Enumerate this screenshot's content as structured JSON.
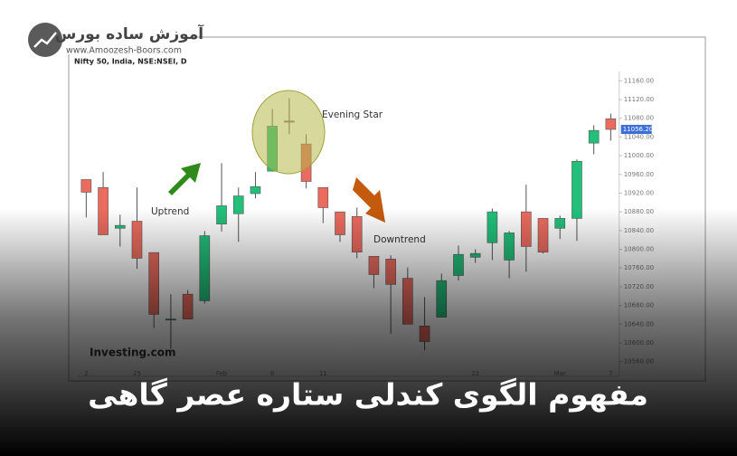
{
  "brand": {
    "name": "آموزش ساده بورس",
    "url": "www.Amoozesh-Boors.com"
  },
  "chart_data": {
    "type": "candlestick",
    "title": "مفهوم الگوی کندلی ستاره عصر گاهی",
    "subtitle": "Nifty 50, India, NSE:NSEI, D",
    "watermark": "Investing.com",
    "annotations": [
      {
        "text": "Uptrend",
        "index": 4
      },
      {
        "text": "Evening Star",
        "index": 13
      },
      {
        "text": "Downtrend",
        "index": 19
      }
    ],
    "categories": [
      "2",
      null,
      null,
      "25",
      null,
      null,
      null,
      null,
      "Feb",
      null,
      null,
      "8",
      null,
      null,
      "11",
      null,
      null,
      null,
      null,
      null,
      null,
      null,
      null,
      "22",
      null,
      null,
      null,
      null,
      "Mar",
      null,
      null,
      "7"
    ],
    "open": [
      10949,
      10932,
      10845,
      10860,
      10793,
      10651,
      10704,
      10690,
      10854,
      10876,
      10919,
      10967,
      11074,
      11025,
      10932,
      10880,
      10870,
      10785,
      10779,
      10738,
      10636,
      10655,
      10744,
      10783,
      10814,
      10777,
      10880,
      10866,
      10845,
      10866,
      11027,
      11079
    ],
    "high": [
      10949,
      10965,
      10874,
      10932,
      10793,
      10704,
      10713,
      10839,
      10984,
      10932,
      10965,
      11100,
      11123,
      11046,
      10932,
      10880,
      10889,
      10785,
      10787,
      10761,
      10698,
      10748,
      10808,
      10800,
      10887,
      10839,
      10938,
      10866,
      10872,
      10992,
      11065,
      11090
    ],
    "low": [
      10868,
      10831,
      10806,
      10758,
      10632,
      10587,
      10651,
      10684,
      10838,
      10816,
      10909,
      10967,
      11046,
      10930,
      10856,
      10816,
      10781,
      10717,
      10620,
      10640,
      10584,
      10655,
      10733,
      10771,
      10777,
      10738,
      10752,
      10791,
      10822,
      10818,
      11003,
      11032
    ],
    "close": [
      10922,
      10831,
      10851,
      10781,
      10661,
      10651,
      10651,
      10829,
      10893,
      10914,
      10934,
      11063,
      11073,
      10945,
      10889,
      10831,
      10794,
      10746,
      10725,
      10640,
      10603,
      10733,
      10789,
      10791,
      10880,
      10835,
      10806,
      10794,
      10866,
      10988,
      11054,
      11056.2
    ],
    "last_price_label": "11056.20",
    "up_color": "#22c07a",
    "down_color": "#ec6b5f",
    "ylim": [
      10540,
      11180
    ],
    "yticks": [
      {
        "value": 10560,
        "label": "10560.00"
      },
      {
        "value": 10600,
        "label": "10600.00"
      },
      {
        "value": 10640,
        "label": "10640.00"
      },
      {
        "value": 10680,
        "label": "10680.00"
      },
      {
        "value": 10720,
        "label": "10720.00"
      },
      {
        "value": 10760,
        "label": "10760.00"
      },
      {
        "value": 10800,
        "label": "10800.00"
      },
      {
        "value": 10840,
        "label": "10840.00"
      },
      {
        "value": 10880,
        "label": "10880.00"
      },
      {
        "value": 10920,
        "label": "10920.00"
      },
      {
        "value": 10960,
        "label": "10960.00"
      },
      {
        "value": 11000,
        "label": "11000.00"
      },
      {
        "value": 11040,
        "label": "11040.00"
      },
      {
        "value": 11080,
        "label": "11080.00"
      },
      {
        "value": 11120,
        "label": "11120.00"
      },
      {
        "value": 11160,
        "label": "11160.00"
      }
    ]
  }
}
